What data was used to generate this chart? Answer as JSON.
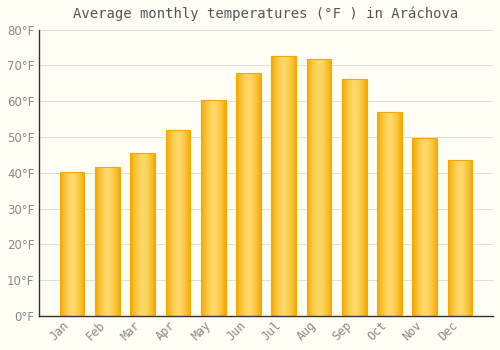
{
  "title": "Average monthly temperatures (°F ) in Aráchova",
  "months": [
    "Jan",
    "Feb",
    "Mar",
    "Apr",
    "May",
    "Jun",
    "Jul",
    "Aug",
    "Sep",
    "Oct",
    "Nov",
    "Dec"
  ],
  "temperatures": [
    40.1,
    41.5,
    45.5,
    52.0,
    60.3,
    68.0,
    72.7,
    71.8,
    66.3,
    57.0,
    49.8,
    43.7
  ],
  "bar_color_center": "#FDD96A",
  "bar_color_edge": "#F5A800",
  "background_color": "#FFFEF5",
  "grid_color": "#DDDDDD",
  "text_color": "#888888",
  "title_color": "#555555",
  "axis_color": "#333333",
  "ylim": [
    0,
    80
  ],
  "yticks": [
    0,
    10,
    20,
    30,
    40,
    50,
    60,
    70,
    80
  ],
  "title_fontsize": 10,
  "tick_fontsize": 8.5,
  "bar_width": 0.7
}
